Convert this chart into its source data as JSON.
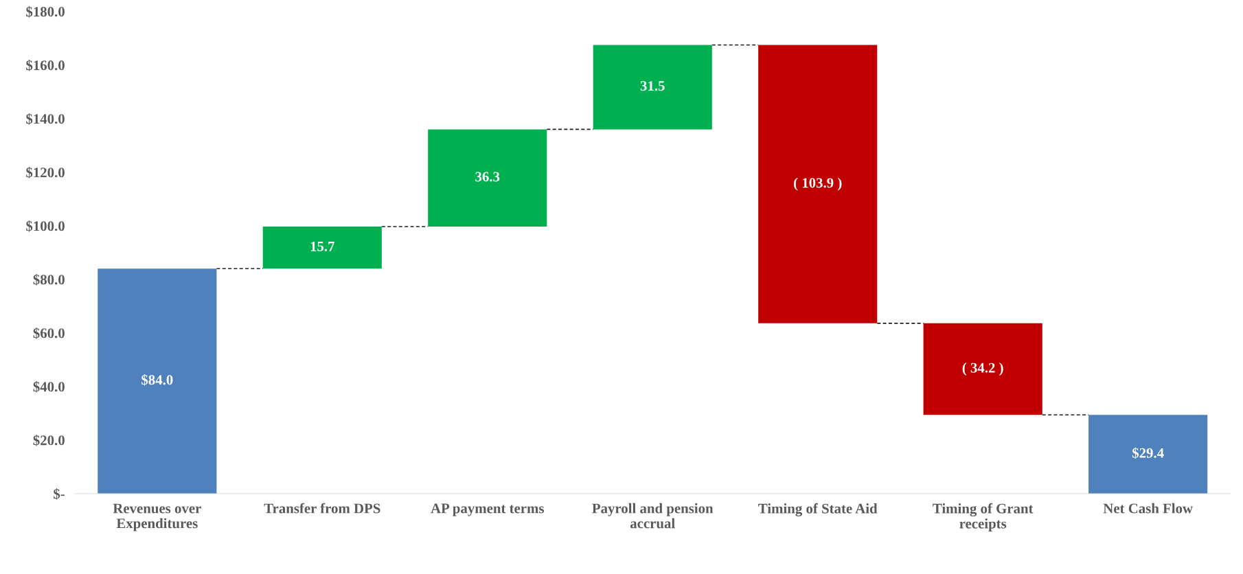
{
  "chart_data": {
    "type": "bar",
    "categories": [
      "Revenues over\nExpenditures",
      "Transfer from DPS",
      "AP payment terms",
      "Payroll and pension\naccrual",
      "Timing of State Aid",
      "Timing of Grant\nreceipts",
      "Net Cash Flow"
    ],
    "values": [
      84.0,
      15.7,
      36.3,
      31.5,
      -103.9,
      -34.2,
      29.4
    ],
    "base": [
      0,
      84.0,
      99.7,
      136.0,
      167.5,
      63.6,
      0
    ],
    "colors": [
      "#4f81bd",
      "#00b050",
      "#00b050",
      "#00b050",
      "#c00000",
      "#c00000",
      "#4f81bd"
    ],
    "value_labels": [
      "$84.0",
      "15.7",
      "36.3",
      "31.5",
      "( 103.9 )",
      "( 34.2 )",
      "$29.4"
    ],
    "ylim": [
      0,
      180
    ],
    "yticks": [
      {
        "value": 0,
        "label": "$-"
      },
      {
        "value": 20,
        "label": "$20.0"
      },
      {
        "value": 40,
        "label": "$40.0"
      },
      {
        "value": 60,
        "label": "$60.0"
      },
      {
        "value": 80,
        "label": "$80.0"
      },
      {
        "value": 100,
        "label": "$100.0"
      },
      {
        "value": 120,
        "label": "$120.0"
      },
      {
        "value": 140,
        "label": "$140.0"
      },
      {
        "value": 160,
        "label": "$160.0"
      },
      {
        "value": 180,
        "label": "$180.0"
      }
    ],
    "grid": false
  }
}
